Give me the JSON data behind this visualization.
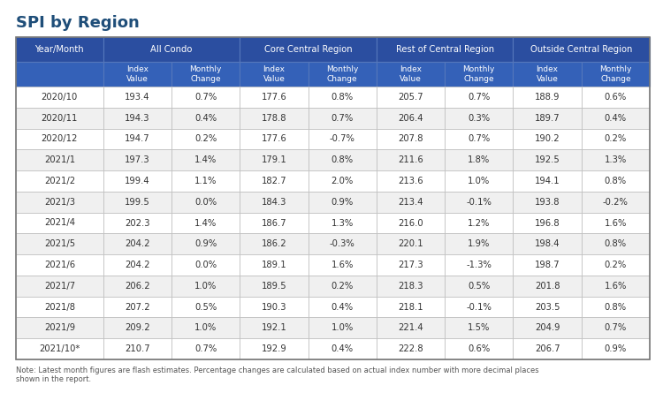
{
  "title": "SPI by Region",
  "note": "Note: Latest month figures are flash estimates. Percentage changes are calculated based on actual index number with more decimal places\nshown in the report.",
  "header_bg": "#2B4EA0",
  "subheader_bg": "#3461B8",
  "row_bg_odd": "#FFFFFF",
  "row_bg_even": "#F0F0F0",
  "header_text_color": "#FFFFFF",
  "data_text_color": "#333333",
  "grid_color": "#BBBBBB",
  "title_color": "#1F4E79",
  "rows": [
    [
      "2020/10",
      "193.4",
      "0.7%",
      "177.6",
      "0.8%",
      "205.7",
      "0.7%",
      "188.9",
      "0.6%"
    ],
    [
      "2020/11",
      "194.3",
      "0.4%",
      "178.8",
      "0.7%",
      "206.4",
      "0.3%",
      "189.7",
      "0.4%"
    ],
    [
      "2020/12",
      "194.7",
      "0.2%",
      "177.6",
      "-0.7%",
      "207.8",
      "0.7%",
      "190.2",
      "0.2%"
    ],
    [
      "2021/1",
      "197.3",
      "1.4%",
      "179.1",
      "0.8%",
      "211.6",
      "1.8%",
      "192.5",
      "1.3%"
    ],
    [
      "2021/2",
      "199.4",
      "1.1%",
      "182.7",
      "2.0%",
      "213.6",
      "1.0%",
      "194.1",
      "0.8%"
    ],
    [
      "2021/3",
      "199.5",
      "0.0%",
      "184.3",
      "0.9%",
      "213.4",
      "-0.1%",
      "193.8",
      "-0.2%"
    ],
    [
      "2021/4",
      "202.3",
      "1.4%",
      "186.7",
      "1.3%",
      "216.0",
      "1.2%",
      "196.8",
      "1.6%"
    ],
    [
      "2021/5",
      "204.2",
      "0.9%",
      "186.2",
      "-0.3%",
      "220.1",
      "1.9%",
      "198.4",
      "0.8%"
    ],
    [
      "2021/6",
      "204.2",
      "0.0%",
      "189.1",
      "1.6%",
      "217.3",
      "-1.3%",
      "198.7",
      "0.2%"
    ],
    [
      "2021/7",
      "206.2",
      "1.0%",
      "189.5",
      "0.2%",
      "218.3",
      "0.5%",
      "201.8",
      "1.6%"
    ],
    [
      "2021/8",
      "207.2",
      "0.5%",
      "190.3",
      "0.4%",
      "218.1",
      "-0.1%",
      "203.5",
      "0.8%"
    ],
    [
      "2021/9",
      "209.2",
      "1.0%",
      "192.1",
      "1.0%",
      "221.4",
      "1.5%",
      "204.9",
      "0.7%"
    ],
    [
      "2021/10*",
      "210.7",
      "0.7%",
      "192.9",
      "0.4%",
      "222.8",
      "0.6%",
      "206.7",
      "0.9%"
    ]
  ]
}
